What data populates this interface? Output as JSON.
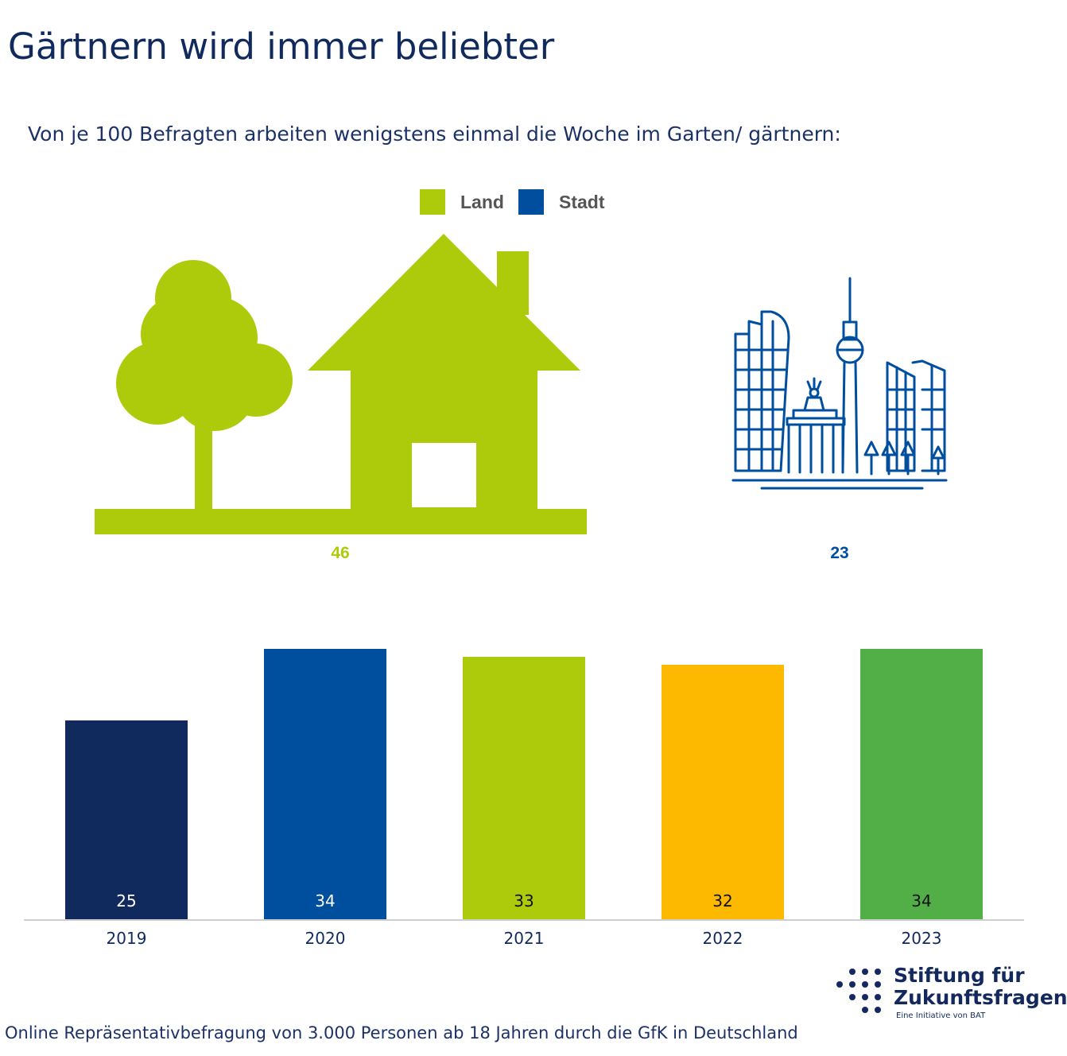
{
  "title": "Gärtnern wird immer beliebter",
  "subtitle": "Von je 100 Befragten arbeiten wenigstens einmal die Woche im Garten/ gärtnern:",
  "legend": [
    {
      "label": "Land",
      "color": "#aecb0b"
    },
    {
      "label": "Stadt",
      "color": "#004f9f"
    }
  ],
  "icons": {
    "land": "tree-and-house-icon",
    "stadt": "berlin-skyline-icon"
  },
  "comparison": {
    "land": {
      "value": "46",
      "color": "#aecb0b"
    },
    "stadt": {
      "value": "23",
      "color": "#004f9f"
    }
  },
  "chart_data": {
    "type": "bar",
    "title": "",
    "xlabel": "",
    "ylabel": "",
    "categories": [
      "2019",
      "2020",
      "2021",
      "2022",
      "2023"
    ],
    "values": [
      25,
      34,
      33,
      32,
      34
    ],
    "colors": [
      "#112a5e",
      "#004f9f",
      "#aecb0b",
      "#fdb900",
      "#52ae46"
    ],
    "label_colors": [
      "#ffffff",
      "#ffffff",
      "#111111",
      "#111111",
      "#111111"
    ],
    "grid": false,
    "legend": "none"
  },
  "footer": {
    "source": "Online Repräsentativbefragung von 3.000 Personen ab 18 Jahren durch die GfK in Deutschland"
  },
  "logo": {
    "line1": "Stiftung für",
    "line2": "Zukunftsfragen",
    "line3": "Eine Initiative von BAT",
    "color": "#13295d"
  }
}
